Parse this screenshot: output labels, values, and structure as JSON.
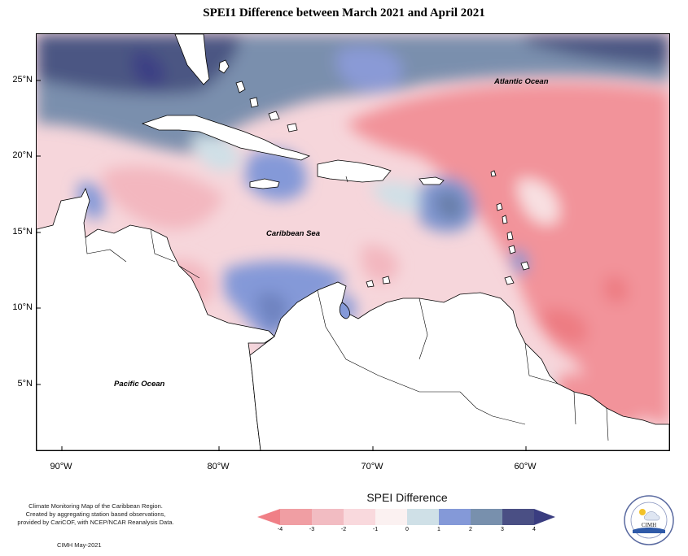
{
  "title": "SPEI1 Difference between March 2021 and April 2021",
  "map": {
    "ocean_labels": {
      "atlantic": "Atlantic Ocean",
      "caribbean": "Caribbean Sea",
      "pacific": "Pacific Ocean"
    },
    "lat_labels": [
      "25°N",
      "20°N",
      "15°N",
      "10°N",
      "5°N"
    ],
    "lon_labels": [
      "90°W",
      "80°W",
      "70°W",
      "60°W"
    ]
  },
  "legend": {
    "title": "SPEI Difference",
    "ticks": [
      "-4",
      "-3",
      "-2",
      "-1",
      "0",
      "1",
      "2",
      "3",
      "4"
    ],
    "colors": [
      "#f07f86",
      "#f09ea3",
      "#f2bcc2",
      "#f9d9dd",
      "#fbf1f1",
      "#cfe0e7",
      "#8499d8",
      "#7890ad",
      "#4a4f84",
      "#3a3d80"
    ]
  },
  "info": {
    "line1": "Climate Monitoring Map of the Caribbean Region.",
    "line2": "Created by aggregating station based observations,",
    "line3": "provided by CariCOF, with NCEP/NCAR Reanalysis Data.",
    "credit": "CIMH May-2021"
  },
  "logo": {
    "text": "CIMH"
  }
}
